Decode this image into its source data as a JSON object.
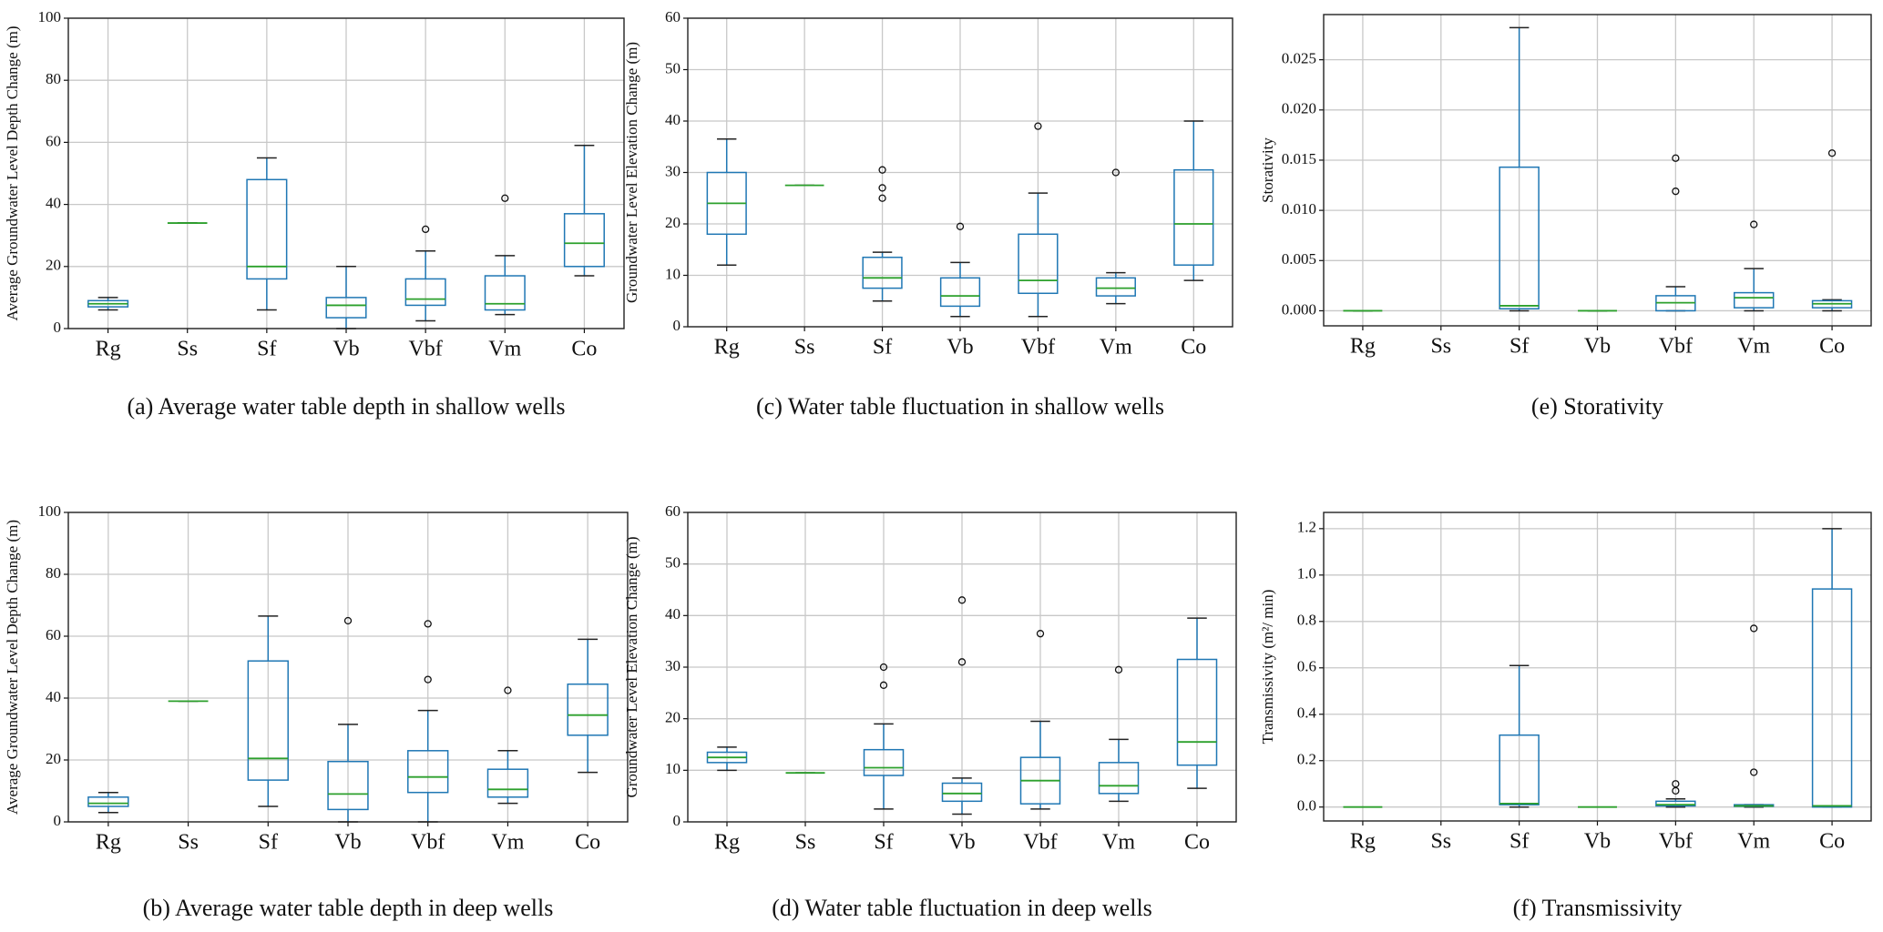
{
  "chart_data": [
    {
      "type": "box",
      "title": "(a)   Average water table depth in shallow wells",
      "ylabel": "Average Groundwater Level Depth Change (m)",
      "categories": [
        "Rg",
        "Ss",
        "Sf",
        "Vb",
        "Vbf",
        "Vm",
        "Co"
      ],
      "boxes": [
        {
          "min": 6,
          "q1": 7,
          "median": 8,
          "q3": 9,
          "max": 10,
          "outliers": []
        },
        {
          "min": 34,
          "q1": 34,
          "median": 34,
          "q3": 34,
          "max": 34,
          "outliers": []
        },
        {
          "min": 6,
          "q1": 16,
          "median": 20,
          "q3": 48,
          "max": 55,
          "outliers": []
        },
        {
          "min": 0,
          "q1": 3.5,
          "median": 7.5,
          "q3": 10,
          "max": 20,
          "outliers": []
        },
        {
          "min": 2.5,
          "q1": 7.5,
          "median": 9.5,
          "q3": 16,
          "max": 25,
          "outliers": [
            32
          ]
        },
        {
          "min": 4.5,
          "q1": 6,
          "median": 8,
          "q3": 17,
          "max": 23.5,
          "outliers": [
            42
          ]
        },
        {
          "min": 17,
          "q1": 20,
          "median": 27.5,
          "q3": 37,
          "max": 59,
          "outliers": []
        }
      ],
      "ylim": [
        0,
        100
      ],
      "yticks": [
        0,
        20,
        40,
        60,
        80,
        100
      ],
      "grid": true,
      "box_color": "#1f77b4",
      "median_color": "#2ca02c"
    },
    {
      "type": "box",
      "title": "(b)   Average water table depth in deep wells",
      "ylabel": "Average Groundwater Level Depth Change (m)",
      "categories": [
        "Rg",
        "Ss",
        "Sf",
        "Vb",
        "Vbf",
        "Vm",
        "Co"
      ],
      "boxes": [
        {
          "min": 3,
          "q1": 5,
          "median": 6,
          "q3": 8,
          "max": 9.5,
          "outliers": []
        },
        {
          "min": 39,
          "q1": 39,
          "median": 39,
          "q3": 39,
          "max": 39,
          "outliers": []
        },
        {
          "min": 5,
          "q1": 13.5,
          "median": 20.5,
          "q3": 52,
          "max": 66.5,
          "outliers": []
        },
        {
          "min": 0,
          "q1": 4,
          "median": 9,
          "q3": 19.5,
          "max": 31.5,
          "outliers": [
            65
          ]
        },
        {
          "min": 0,
          "q1": 9.5,
          "median": 14.5,
          "q3": 23,
          "max": 36,
          "outliers": [
            46,
            64
          ]
        },
        {
          "min": 6,
          "q1": 8,
          "median": 10.5,
          "q3": 17,
          "max": 23,
          "outliers": [
            42.5
          ]
        },
        {
          "min": 16,
          "q1": 28,
          "median": 34.5,
          "q3": 44.5,
          "max": 59,
          "outliers": []
        }
      ],
      "ylim": [
        0,
        100
      ],
      "yticks": [
        0,
        20,
        40,
        60,
        80,
        100
      ],
      "grid": true,
      "box_color": "#1f77b4",
      "median_color": "#2ca02c"
    },
    {
      "type": "box",
      "title": "(c) Water table fluctuation in shallow wells",
      "ylabel": "Groundwater Level Elevation Change (m)",
      "categories": [
        "Rg",
        "Ss",
        "Sf",
        "Vb",
        "Vbf",
        "Vm",
        "Co"
      ],
      "boxes": [
        {
          "min": 12,
          "q1": 18,
          "median": 24,
          "q3": 30,
          "max": 36.5,
          "outliers": []
        },
        {
          "min": 27.5,
          "q1": 27.5,
          "median": 27.5,
          "q3": 27.5,
          "max": 27.5,
          "outliers": []
        },
        {
          "min": 5,
          "q1": 7.5,
          "median": 9.5,
          "q3": 13.5,
          "max": 14.5,
          "outliers": [
            25,
            27,
            30.5
          ]
        },
        {
          "min": 2,
          "q1": 4,
          "median": 6,
          "q3": 9.5,
          "max": 12.5,
          "outliers": [
            19.5
          ]
        },
        {
          "min": 2,
          "q1": 6.5,
          "median": 9,
          "q3": 18,
          "max": 26,
          "outliers": [
            39
          ]
        },
        {
          "min": 4.5,
          "q1": 6,
          "median": 7.5,
          "q3": 9.5,
          "max": 10.5,
          "outliers": [
            30
          ]
        },
        {
          "min": 9,
          "q1": 12,
          "median": 20,
          "q3": 30.5,
          "max": 40,
          "outliers": []
        }
      ],
      "ylim": [
        0,
        60
      ],
      "yticks": [
        0,
        10,
        20,
        30,
        40,
        50,
        60
      ],
      "grid": true,
      "box_color": "#1f77b4",
      "median_color": "#2ca02c"
    },
    {
      "type": "box",
      "title": "(d) Water table fluctuation in deep wells",
      "ylabel": "Groundwater Level Elevation Change (m)",
      "categories": [
        "Rg",
        "Ss",
        "Sf",
        "Vb",
        "Vbf",
        "Vm",
        "Co"
      ],
      "boxes": [
        {
          "min": 10,
          "q1": 11.5,
          "median": 12.5,
          "q3": 13.5,
          "max": 14.5,
          "outliers": []
        },
        {
          "min": 9.5,
          "q1": 9.5,
          "median": 9.5,
          "q3": 9.5,
          "max": 9.5,
          "outliers": []
        },
        {
          "min": 2.5,
          "q1": 9,
          "median": 10.5,
          "q3": 14,
          "max": 19,
          "outliers": [
            26.5,
            30
          ]
        },
        {
          "min": 1.5,
          "q1": 4,
          "median": 5.5,
          "q3": 7.5,
          "max": 8.5,
          "outliers": [
            31,
            43
          ]
        },
        {
          "min": 2.5,
          "q1": 3.5,
          "median": 8,
          "q3": 12.5,
          "max": 19.5,
          "outliers": [
            36.5
          ]
        },
        {
          "min": 4,
          "q1": 5.5,
          "median": 7,
          "q3": 11.5,
          "max": 16,
          "outliers": [
            29.5
          ]
        },
        {
          "min": 6.5,
          "q1": 11,
          "median": 15.5,
          "q3": 31.5,
          "max": 39.5,
          "outliers": []
        }
      ],
      "ylim": [
        0,
        60
      ],
      "yticks": [
        0,
        10,
        20,
        30,
        40,
        50,
        60
      ],
      "grid": true,
      "box_color": "#1f77b4",
      "median_color": "#2ca02c"
    },
    {
      "type": "box",
      "title": "(e) Storativity",
      "ylabel": "Storativity",
      "categories": [
        "Rg",
        "Ss",
        "Sf",
        "Vb",
        "Vbf",
        "Vm",
        "Co"
      ],
      "boxes": [
        {
          "min": 0,
          "q1": 0,
          "median": 0,
          "q3": 0,
          "max": 0,
          "outliers": []
        },
        null,
        {
          "min": 0,
          "q1": 0.0002,
          "median": 0.0005,
          "q3": 0.0143,
          "max": 0.0282,
          "outliers": []
        },
        {
          "min": 0,
          "q1": 0,
          "median": 0,
          "q3": 0,
          "max": 0,
          "outliers": []
        },
        {
          "min": 0,
          "q1": 0,
          "median": 0.0008,
          "q3": 0.0015,
          "max": 0.0024,
          "outliers": [
            0.0119,
            0.0152
          ]
        },
        {
          "min": 0,
          "q1": 0.0003,
          "median": 0.0013,
          "q3": 0.0018,
          "max": 0.0042,
          "outliers": [
            0.0086
          ]
        },
        {
          "min": 0,
          "q1": 0.0003,
          "median": 0.0007,
          "q3": 0.001,
          "max": 0.0011,
          "outliers": [
            0.0157
          ]
        }
      ],
      "ylim": [
        -0.0015,
        0.0295
      ],
      "yticks": [
        {
          "value": 0,
          "label": "0.000"
        },
        {
          "value": 0.005,
          "label": "0.005"
        },
        {
          "value": 0.01,
          "label": "0.010"
        },
        {
          "value": 0.015,
          "label": "0.015"
        },
        {
          "value": 0.02,
          "label": "0.020"
        },
        {
          "value": 0.025,
          "label": "0.025"
        }
      ],
      "grid": true,
      "box_color": "#1f77b4",
      "median_color": "#2ca02c"
    },
    {
      "type": "box",
      "title": "(f) Transmissivity",
      "ylabel": "Transmissivity (m²/ min)",
      "categories": [
        "Rg",
        "Ss",
        "Sf",
        "Vb",
        "Vbf",
        "Vm",
        "Co"
      ],
      "boxes": [
        {
          "min": 0,
          "q1": 0,
          "median": 0,
          "q3": 0,
          "max": 0,
          "outliers": []
        },
        null,
        {
          "min": 0,
          "q1": 0.01,
          "median": 0.015,
          "q3": 0.31,
          "max": 0.61,
          "outliers": []
        },
        {
          "min": 0,
          "q1": 0,
          "median": 0,
          "q3": 0,
          "max": 0,
          "outliers": []
        },
        {
          "min": 0,
          "q1": 0.005,
          "median": 0.01,
          "q3": 0.025,
          "max": 0.035,
          "outliers": [
            0.07,
            0.1
          ]
        },
        {
          "min": 0,
          "q1": 0.003,
          "median": 0.005,
          "q3": 0.01,
          "max": 0.01,
          "outliers": [
            0.15,
            0.77
          ]
        },
        {
          "min": 0,
          "q1": 0,
          "median": 0.005,
          "q3": 0.94,
          "max": 1.2,
          "outliers": []
        }
      ],
      "ylim": [
        -0.06,
        1.27
      ],
      "yticks": [
        {
          "value": 0,
          "label": "0.0"
        },
        0.2,
        0.4,
        0.6,
        0.8,
        {
          "value": 1,
          "label": "1.0"
        },
        1.2
      ],
      "grid": true,
      "box_color": "#1f77b4",
      "median_color": "#2ca02c"
    }
  ]
}
